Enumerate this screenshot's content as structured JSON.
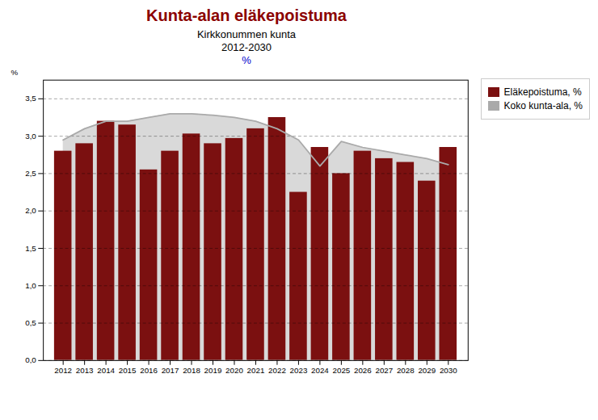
{
  "chart_data": {
    "type": "bar",
    "title": "Kunta-alan eläkepoistuma",
    "subtitle": [
      "Kirkkonummen kunta",
      "2012-2030",
      "%"
    ],
    "ylabel": "%",
    "categories": [
      "2012",
      "2013",
      "2014",
      "2015",
      "2016",
      "2017",
      "2018",
      "2019",
      "2020",
      "2021",
      "2022",
      "2023",
      "2024",
      "2025",
      "2026",
      "2027",
      "2028",
      "2029",
      "2030"
    ],
    "series": [
      {
        "name": "Eläkepoistuma, %",
        "type": "bar",
        "color": "#7B1010",
        "values": [
          2.8,
          2.9,
          3.2,
          3.15,
          2.55,
          2.8,
          3.03,
          2.9,
          2.97,
          3.1,
          3.25,
          2.25,
          2.85,
          2.5,
          2.8,
          2.7,
          2.65,
          2.4,
          2.85
        ]
      },
      {
        "name": "Koko kunta-ala, %",
        "type": "line",
        "color": "#AAAAAA",
        "values": [
          2.95,
          3.1,
          3.2,
          3.2,
          3.25,
          3.3,
          3.3,
          3.28,
          3.25,
          3.2,
          3.1,
          2.95,
          2.6,
          2.93,
          2.85,
          2.8,
          2.75,
          2.7,
          2.62
        ]
      }
    ],
    "ylim": [
      0.0,
      3.75
    ],
    "yticks": [
      {
        "value": 0.0,
        "label": "0,0"
      },
      {
        "value": 0.5,
        "label": "0,5"
      },
      {
        "value": 1.0,
        "label": "1,0"
      },
      {
        "value": 1.5,
        "label": "1,5"
      },
      {
        "value": 2.0,
        "label": "2,0"
      },
      {
        "value": 2.5,
        "label": "2,5"
      },
      {
        "value": 3.0,
        "label": "3,0"
      },
      {
        "value": 3.5,
        "label": "3,5"
      }
    ],
    "grid": true,
    "legend": "right"
  }
}
